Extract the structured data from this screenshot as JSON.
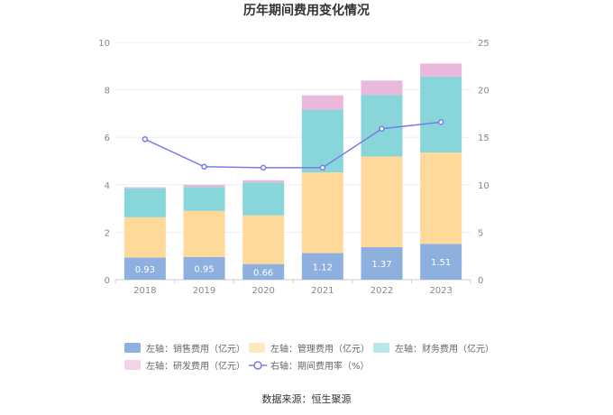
{
  "title": "历年期间费用变化情况",
  "source": "数据来源：恒生聚源",
  "chart_data": {
    "type": "bar",
    "stacked": true,
    "categories": [
      "2018",
      "2019",
      "2020",
      "2021",
      "2022",
      "2023"
    ],
    "left_axis": {
      "min": 0,
      "max": 10,
      "ticks": [
        "0",
        "2",
        "4",
        "6",
        "8",
        "10"
      ]
    },
    "right_axis": {
      "min": 0,
      "max": 25,
      "ticks": [
        "0",
        "5",
        "10",
        "15",
        "20",
        "25"
      ]
    },
    "grid": true,
    "legend_position": "bottom",
    "series": [
      {
        "name": "左轴：销售费用（亿元）",
        "type": "bar",
        "color": "#8eb0de",
        "values": [
          0.93,
          0.95,
          0.66,
          1.12,
          1.37,
          1.51
        ],
        "labels": [
          "0.93",
          "0.95",
          "0.66",
          "1.12",
          "1.37",
          "1.51"
        ]
      },
      {
        "name": "左轴：管理费用（亿元）",
        "type": "bar",
        "color": "#fed99a",
        "values": [
          1.7,
          1.95,
          2.05,
          3.4,
          3.82,
          3.85
        ]
      },
      {
        "name": "左轴：财务费用（亿元）",
        "type": "bar",
        "color": "#88d6da",
        "values": [
          1.22,
          1.0,
          1.38,
          2.65,
          2.6,
          3.2
        ]
      },
      {
        "name": "左轴：研发费用（亿元）",
        "type": "bar",
        "color": "#e9b8da",
        "values": [
          0.05,
          0.1,
          0.1,
          0.6,
          0.6,
          0.55
        ]
      },
      {
        "name": "右轴：期间费用率（%）",
        "type": "line",
        "axis": "right",
        "color": "#7a7ce6",
        "values": [
          14.8,
          11.9,
          11.8,
          11.8,
          15.9,
          16.6
        ]
      }
    ]
  }
}
